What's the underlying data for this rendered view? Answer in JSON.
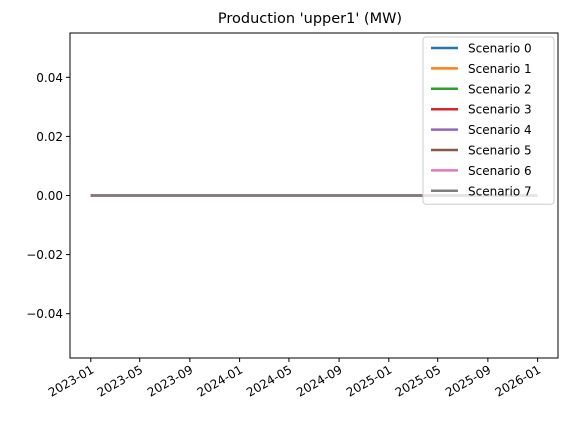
{
  "chart_data": {
    "type": "line",
    "title": "Production 'upper1' (MW)",
    "xlabel": "",
    "ylabel": "",
    "x_ticks": [
      "2023-01",
      "2023-05",
      "2023-09",
      "2024-01",
      "2024-05",
      "2024-09",
      "2025-01",
      "2025-05",
      "2025-09",
      "2026-01"
    ],
    "y_ticks": [
      "−0.04",
      "−0.02",
      "0.00",
      "0.02",
      "0.04"
    ],
    "y_tick_values": [
      -0.04,
      -0.02,
      0.0,
      0.02,
      0.04
    ],
    "xlim": [
      "2022-11-11",
      "2026-02-20"
    ],
    "ylim": [
      -0.055,
      0.055
    ],
    "grid": false,
    "legend_position": "top-right",
    "series": [
      {
        "name": "Scenario 0",
        "color": "#1f77b4",
        "x": [
          "2023-01-01",
          "2025-12-31"
        ],
        "y": [
          0,
          0
        ]
      },
      {
        "name": "Scenario 1",
        "color": "#ff7f0e",
        "x": [
          "2023-01-01",
          "2025-12-31"
        ],
        "y": [
          0,
          0
        ]
      },
      {
        "name": "Scenario 2",
        "color": "#2ca02c",
        "x": [
          "2023-01-01",
          "2025-12-31"
        ],
        "y": [
          0,
          0
        ]
      },
      {
        "name": "Scenario 3",
        "color": "#d62728",
        "x": [
          "2023-01-01",
          "2025-12-31"
        ],
        "y": [
          0,
          0
        ]
      },
      {
        "name": "Scenario 4",
        "color": "#9467bd",
        "x": [
          "2023-01-01",
          "2025-12-31"
        ],
        "y": [
          0,
          0
        ]
      },
      {
        "name": "Scenario 5",
        "color": "#8c564b",
        "x": [
          "2023-01-01",
          "2025-12-31"
        ],
        "y": [
          0,
          0
        ]
      },
      {
        "name": "Scenario 6",
        "color": "#e377c2",
        "x": [
          "2023-01-01",
          "2025-12-31"
        ],
        "y": [
          0,
          0
        ]
      },
      {
        "name": "Scenario 7",
        "color": "#7f7f7f",
        "x": [
          "2023-01-01",
          "2025-12-31"
        ],
        "y": [
          0,
          0
        ]
      }
    ]
  }
}
